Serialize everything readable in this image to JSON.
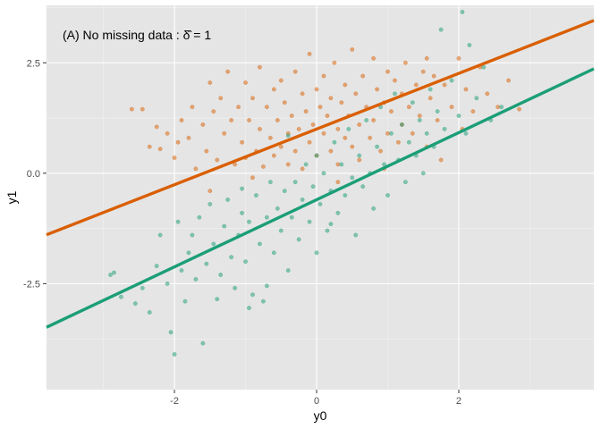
{
  "chart_data": {
    "type": "scatter",
    "title": "(A) No missing data : δ̂ = 1",
    "xlabel": "y0",
    "ylabel": "y1",
    "x_ticks": [
      {
        "value": -2,
        "label": "-2"
      },
      {
        "value": 0,
        "label": "0"
      },
      {
        "value": 2,
        "label": "2"
      }
    ],
    "y_ticks": [
      {
        "value": -2.5,
        "label": "-2.5"
      },
      {
        "value": 0,
        "label": "0.0"
      },
      {
        "value": 2.5,
        "label": "2.5"
      }
    ],
    "xlim": [
      -3.8,
      3.9
    ],
    "ylim": [
      -4.9,
      3.8
    ],
    "grid": true,
    "legend": "none",
    "background_color": "#e5e5e5",
    "grid_major_color": "#ffffff",
    "grid_minor_color": "#f2f2f2",
    "series": [
      {
        "color": "#d95f02",
        "fit_line": {
          "intercept": 1.0,
          "slope": 0.63
        },
        "points": [
          [
            -2.6,
            1.45
          ],
          [
            -2.45,
            1.45
          ],
          [
            -2.35,
            0.6
          ],
          [
            -2.2,
            0.55
          ],
          [
            -2.1,
            0.9
          ],
          [
            -2.0,
            0.35
          ],
          [
            -1.9,
            1.2
          ],
          [
            -1.8,
            0.8
          ],
          [
            -1.75,
            1.5
          ],
          [
            -1.7,
            0.1
          ],
          [
            -1.6,
            1.1
          ],
          [
            -1.55,
            0.5
          ],
          [
            -1.5,
            2.05
          ],
          [
            -1.45,
            1.4
          ],
          [
            -1.4,
            0.3
          ],
          [
            -1.35,
            1.7
          ],
          [
            -1.3,
            0.9
          ],
          [
            -1.25,
            2.3
          ],
          [
            -1.2,
            1.2
          ],
          [
            -1.15,
            0.2
          ],
          [
            -1.1,
            1.5
          ],
          [
            -1.05,
            0.7
          ],
          [
            -1.0,
            2.05
          ],
          [
            -1.0,
            0.35
          ],
          [
            -0.95,
            1.2
          ],
          [
            -0.9,
            1.7
          ],
          [
            -0.85,
            0.5
          ],
          [
            -0.8,
            2.4
          ],
          [
            -0.8,
            1.0
          ],
          [
            -0.75,
            0.15
          ],
          [
            -0.7,
            1.5
          ],
          [
            -0.65,
            0.8
          ],
          [
            -0.6,
            1.9
          ],
          [
            -0.6,
            0.4
          ],
          [
            -0.55,
            1.2
          ],
          [
            -0.5,
            2.1
          ],
          [
            -0.5,
            0.6
          ],
          [
            -0.45,
            1.6
          ],
          [
            -0.4,
            0.9
          ],
          [
            -0.4,
            0.2
          ],
          [
            -0.35,
            1.3
          ],
          [
            -0.3,
            2.3
          ],
          [
            -0.3,
            0.5
          ],
          [
            -0.25,
            1.0
          ],
          [
            -0.2,
            1.8
          ],
          [
            -0.2,
            0.1
          ],
          [
            -0.15,
            1.4
          ],
          [
            -0.1,
            0.7
          ],
          [
            -0.1,
            2.7
          ],
          [
            -0.05,
            1.1
          ],
          [
            0.0,
            1.9
          ],
          [
            0.0,
            0.4
          ],
          [
            0.05,
            1.5
          ],
          [
            0.1,
            0.9
          ],
          [
            0.1,
            2.2
          ],
          [
            0.15,
            1.3
          ],
          [
            0.2,
            0.5
          ],
          [
            0.2,
            1.7
          ],
          [
            0.25,
            2.5
          ],
          [
            0.3,
            1.0
          ],
          [
            0.3,
            0.2
          ],
          [
            0.35,
            1.6
          ],
          [
            0.4,
            0.8
          ],
          [
            0.4,
            2.0
          ],
          [
            0.45,
            1.3
          ],
          [
            0.5,
            2.8
          ],
          [
            0.5,
            0.6
          ],
          [
            0.55,
            1.8
          ],
          [
            0.6,
            1.1
          ],
          [
            0.6,
            0.3
          ],
          [
            0.65,
            2.2
          ],
          [
            0.7,
            1.5
          ],
          [
            0.75,
            0.8
          ],
          [
            0.8,
            2.6
          ],
          [
            0.8,
            1.2
          ],
          [
            0.85,
            1.9
          ],
          [
            0.9,
            0.5
          ],
          [
            0.95,
            1.6
          ],
          [
            1.0,
            2.3
          ],
          [
            1.0,
            0.9
          ],
          [
            1.05,
            1.4
          ],
          [
            1.1,
            2.1
          ],
          [
            1.15,
            0.7
          ],
          [
            1.2,
            1.8
          ],
          [
            1.2,
            1.1
          ],
          [
            1.25,
            2.5
          ],
          [
            1.3,
            1.5
          ],
          [
            1.35,
            0.9
          ],
          [
            1.4,
            2.0
          ],
          [
            1.45,
            1.3
          ],
          [
            1.5,
            2.3
          ],
          [
            1.55,
            0.6
          ],
          [
            1.6,
            1.7
          ],
          [
            1.65,
            2.2
          ],
          [
            1.7,
            1.2
          ],
          [
            1.75,
            0.3
          ],
          [
            1.8,
            2.0
          ],
          [
            1.9,
            1.5
          ],
          [
            2.0,
            2.6
          ],
          [
            2.05,
            1.0
          ],
          [
            2.1,
            1.9
          ],
          [
            2.2,
            1.4
          ],
          [
            2.3,
            2.4
          ],
          [
            2.4,
            1.8
          ],
          [
            2.55,
            1.5
          ],
          [
            2.7,
            2.1
          ],
          [
            2.85,
            1.45
          ],
          [
            -1.5,
            -0.4
          ],
          [
            -0.9,
            -0.1
          ],
          [
            0.3,
            -0.2
          ],
          [
            0.95,
            0.1
          ],
          [
            -1.95,
            0.7
          ],
          [
            -2.25,
            1.05
          ],
          [
            1.55,
            2.6
          ]
        ]
      },
      {
        "color": "#1b9e77",
        "fit_line": {
          "intercept": -0.6,
          "slope": 0.76
        },
        "points": [
          [
            -2.85,
            -2.25
          ],
          [
            -2.75,
            -2.8
          ],
          [
            -2.55,
            -2.95
          ],
          [
            -2.45,
            -2.6
          ],
          [
            -2.35,
            -3.15
          ],
          [
            -2.25,
            -2.1
          ],
          [
            -2.2,
            -1.4
          ],
          [
            -2.1,
            -2.5
          ],
          [
            -2.05,
            -3.6
          ],
          [
            -2.0,
            -4.1
          ],
          [
            -1.95,
            -1.1
          ],
          [
            -1.9,
            -2.2
          ],
          [
            -1.85,
            -2.9
          ],
          [
            -1.8,
            -1.8
          ],
          [
            -1.75,
            -1.4
          ],
          [
            -1.7,
            -2.4
          ],
          [
            -1.65,
            -1.0
          ],
          [
            -1.6,
            -3.85
          ],
          [
            -1.55,
            -2.05
          ],
          [
            -1.5,
            -0.7
          ],
          [
            -1.45,
            -1.6
          ],
          [
            -1.4,
            -2.85
          ],
          [
            -1.35,
            -2.3
          ],
          [
            -1.3,
            -1.2
          ],
          [
            -1.25,
            -0.6
          ],
          [
            -1.2,
            -1.9
          ],
          [
            -1.15,
            -2.6
          ],
          [
            -1.1,
            -1.4
          ],
          [
            -1.05,
            -0.9
          ],
          [
            -1.0,
            -2.0
          ],
          [
            -0.95,
            -1.1
          ],
          [
            -0.9,
            -2.75
          ],
          [
            -0.85,
            -0.5
          ],
          [
            -0.8,
            -1.6
          ],
          [
            -0.75,
            -2.9
          ],
          [
            -0.7,
            -1.0
          ],
          [
            -0.65,
            -0.2
          ],
          [
            -0.6,
            -1.8
          ],
          [
            -0.55,
            -0.8
          ],
          [
            -0.5,
            -1.3
          ],
          [
            -0.45,
            -0.4
          ],
          [
            -0.4,
            -2.2
          ],
          [
            -0.35,
            -1.0
          ],
          [
            -0.3,
            -0.2
          ],
          [
            -0.25,
            -1.5
          ],
          [
            -0.2,
            -0.6
          ],
          [
            -0.15,
            0.2
          ],
          [
            -0.1,
            -1.1
          ],
          [
            -0.05,
            -0.3
          ],
          [
            0.0,
            -1.8
          ],
          [
            0.0,
            0.4
          ],
          [
            0.05,
            -0.7
          ],
          [
            0.1,
            0.0
          ],
          [
            0.15,
            -1.3
          ],
          [
            0.2,
            -0.4
          ],
          [
            0.25,
            0.7
          ],
          [
            0.3,
            -0.9
          ],
          [
            0.35,
            0.2
          ],
          [
            0.4,
            -0.5
          ],
          [
            0.45,
            1.0
          ],
          [
            0.5,
            -0.1
          ],
          [
            0.55,
            -1.4
          ],
          [
            0.6,
            0.4
          ],
          [
            0.65,
            -0.3
          ],
          [
            0.7,
            1.2
          ],
          [
            0.75,
            0.0
          ],
          [
            0.8,
            -0.8
          ],
          [
            0.85,
            0.6
          ],
          [
            0.9,
            1.5
          ],
          [
            0.95,
            0.2
          ],
          [
            1.0,
            -0.5
          ],
          [
            1.05,
            0.9
          ],
          [
            1.1,
            1.8
          ],
          [
            1.15,
            0.3
          ],
          [
            1.2,
            1.1
          ],
          [
            1.25,
            -0.2
          ],
          [
            1.3,
            0.7
          ],
          [
            1.35,
            1.6
          ],
          [
            1.4,
            0.4
          ],
          [
            1.45,
            1.2
          ],
          [
            1.5,
            0.0
          ],
          [
            1.55,
            0.9
          ],
          [
            1.6,
            1.9
          ],
          [
            1.65,
            0.6
          ],
          [
            1.7,
            1.4
          ],
          [
            1.75,
            3.25
          ],
          [
            1.8,
            1.0
          ],
          [
            1.9,
            2.1
          ],
          [
            2.0,
            1.3
          ],
          [
            2.05,
            3.65
          ],
          [
            2.1,
            0.9
          ],
          [
            2.15,
            2.9
          ],
          [
            2.25,
            1.7
          ],
          [
            2.35,
            2.4
          ],
          [
            2.45,
            1.2
          ],
          [
            2.6,
            1.5
          ],
          [
            -2.9,
            -2.3
          ],
          [
            -0.95,
            -3.05
          ],
          [
            -0.7,
            -2.55
          ],
          [
            -1.05,
            -0.35
          ],
          [
            0.2,
            -1.15
          ],
          [
            -0.4,
            0.85
          ]
        ]
      }
    ]
  }
}
